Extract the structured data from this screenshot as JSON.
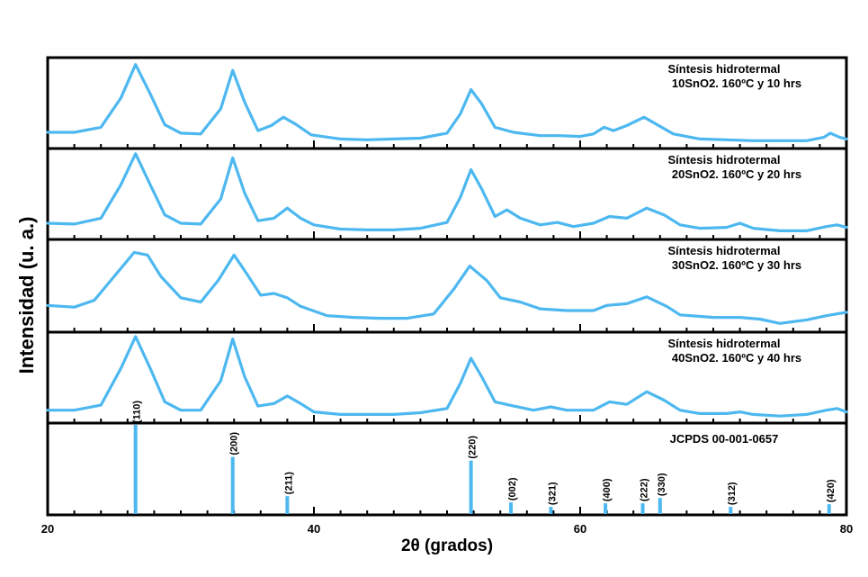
{
  "chart_data": {
    "type": "line",
    "xlabel": "2θ (grados)",
    "ylabel": "Intensidad (u. a.)",
    "xlim": [
      20,
      80
    ],
    "x_ticks": [
      20,
      40,
      60,
      80
    ],
    "line_color": "#4db8f0",
    "panels": [
      {
        "line1": "Síntesis hidrotermal",
        "line2": "10SnO2. 160ºC y 10 hrs",
        "points": [
          [
            20,
            0.14
          ],
          [
            22,
            0.14
          ],
          [
            24,
            0.2
          ],
          [
            25.5,
            0.55
          ],
          [
            26.6,
            0.95
          ],
          [
            27.7,
            0.6
          ],
          [
            28.8,
            0.23
          ],
          [
            30,
            0.13
          ],
          [
            31.5,
            0.12
          ],
          [
            33,
            0.42
          ],
          [
            33.9,
            0.88
          ],
          [
            34.8,
            0.5
          ],
          [
            35.8,
            0.16
          ],
          [
            36.8,
            0.22
          ],
          [
            37.7,
            0.32
          ],
          [
            38.6,
            0.24
          ],
          [
            39.8,
            0.11
          ],
          [
            42,
            0.06
          ],
          [
            44,
            0.05
          ],
          [
            46,
            0.06
          ],
          [
            48,
            0.07
          ],
          [
            50,
            0.13
          ],
          [
            51,
            0.36
          ],
          [
            51.8,
            0.65
          ],
          [
            52.6,
            0.48
          ],
          [
            53.6,
            0.2
          ],
          [
            55,
            0.14
          ],
          [
            57,
            0.1
          ],
          [
            58.5,
            0.1
          ],
          [
            60,
            0.09
          ],
          [
            61,
            0.12
          ],
          [
            61.8,
            0.2
          ],
          [
            62.5,
            0.16
          ],
          [
            63.5,
            0.22
          ],
          [
            64.8,
            0.32
          ],
          [
            65.8,
            0.23
          ],
          [
            67,
            0.12
          ],
          [
            69,
            0.06
          ],
          [
            71,
            0.05
          ],
          [
            73,
            0.04
          ],
          [
            75,
            0.04
          ],
          [
            77,
            0.04
          ],
          [
            78.3,
            0.08
          ],
          [
            78.8,
            0.13
          ],
          [
            79.5,
            0.08
          ],
          [
            80,
            0.06
          ]
        ]
      },
      {
        "line1": "Síntesis hidrotermal",
        "line2": "20SnO2. 160ºC y 20 hrs",
        "points": [
          [
            20,
            0.14
          ],
          [
            22,
            0.13
          ],
          [
            24,
            0.2
          ],
          [
            25.5,
            0.6
          ],
          [
            26.6,
            0.97
          ],
          [
            27.7,
            0.6
          ],
          [
            28.8,
            0.24
          ],
          [
            30,
            0.14
          ],
          [
            31.5,
            0.13
          ],
          [
            33,
            0.43
          ],
          [
            33.9,
            0.92
          ],
          [
            34.8,
            0.5
          ],
          [
            35.8,
            0.17
          ],
          [
            37,
            0.2
          ],
          [
            38,
            0.32
          ],
          [
            39,
            0.2
          ],
          [
            40,
            0.12
          ],
          [
            42,
            0.07
          ],
          [
            44,
            0.06
          ],
          [
            46,
            0.06
          ],
          [
            48,
            0.08
          ],
          [
            50,
            0.15
          ],
          [
            51,
            0.45
          ],
          [
            51.8,
            0.78
          ],
          [
            52.6,
            0.55
          ],
          [
            53.6,
            0.22
          ],
          [
            54.5,
            0.3
          ],
          [
            55.5,
            0.2
          ],
          [
            57,
            0.12
          ],
          [
            58.3,
            0.15
          ],
          [
            59.5,
            0.1
          ],
          [
            61,
            0.14
          ],
          [
            62.2,
            0.22
          ],
          [
            63.5,
            0.2
          ],
          [
            65,
            0.32
          ],
          [
            66.3,
            0.24
          ],
          [
            67.5,
            0.12
          ],
          [
            69,
            0.08
          ],
          [
            71,
            0.09
          ],
          [
            72,
            0.14
          ],
          [
            73,
            0.08
          ],
          [
            75,
            0.05
          ],
          [
            77,
            0.05
          ],
          [
            78.5,
            0.1
          ],
          [
            79.3,
            0.12
          ],
          [
            80,
            0.09
          ]
        ]
      },
      {
        "line1": "Síntesis hidrotermal",
        "line2": "30SnO2. 160ºC y 30 hrs",
        "points": [
          [
            20,
            0.26
          ],
          [
            22,
            0.24
          ],
          [
            23.5,
            0.32
          ],
          [
            25,
            0.6
          ],
          [
            26.5,
            0.88
          ],
          [
            27.5,
            0.85
          ],
          [
            28.5,
            0.6
          ],
          [
            30,
            0.35
          ],
          [
            31.5,
            0.3
          ],
          [
            32.8,
            0.55
          ],
          [
            34,
            0.85
          ],
          [
            35,
            0.62
          ],
          [
            36,
            0.38
          ],
          [
            37,
            0.4
          ],
          [
            38,
            0.35
          ],
          [
            39,
            0.25
          ],
          [
            41,
            0.14
          ],
          [
            43,
            0.12
          ],
          [
            45,
            0.11
          ],
          [
            47,
            0.11
          ],
          [
            49,
            0.16
          ],
          [
            50.5,
            0.45
          ],
          [
            51.7,
            0.72
          ],
          [
            53,
            0.55
          ],
          [
            54,
            0.35
          ],
          [
            55.5,
            0.3
          ],
          [
            57,
            0.22
          ],
          [
            59,
            0.2
          ],
          [
            61,
            0.2
          ],
          [
            62,
            0.26
          ],
          [
            63.5,
            0.28
          ],
          [
            65,
            0.36
          ],
          [
            66.5,
            0.25
          ],
          [
            67.5,
            0.15
          ],
          [
            70,
            0.12
          ],
          [
            72,
            0.12
          ],
          [
            73.5,
            0.1
          ],
          [
            75,
            0.05
          ],
          [
            77,
            0.09
          ],
          [
            78.5,
            0.14
          ],
          [
            80,
            0.18
          ]
        ]
      },
      {
        "line1": "Síntesis hidrotermal",
        "line2": "40SnO2. 160ºC y 40 hrs",
        "points": [
          [
            20,
            0.1
          ],
          [
            22,
            0.1
          ],
          [
            24,
            0.16
          ],
          [
            25.5,
            0.6
          ],
          [
            26.6,
            0.98
          ],
          [
            27.7,
            0.6
          ],
          [
            28.8,
            0.2
          ],
          [
            30,
            0.1
          ],
          [
            31.5,
            0.1
          ],
          [
            33,
            0.45
          ],
          [
            33.9,
            0.95
          ],
          [
            34.8,
            0.5
          ],
          [
            35.8,
            0.15
          ],
          [
            37,
            0.18
          ],
          [
            38,
            0.27
          ],
          [
            39,
            0.18
          ],
          [
            40,
            0.08
          ],
          [
            42,
            0.05
          ],
          [
            44,
            0.05
          ],
          [
            46,
            0.05
          ],
          [
            48,
            0.07
          ],
          [
            50,
            0.12
          ],
          [
            51,
            0.42
          ],
          [
            51.8,
            0.72
          ],
          [
            52.6,
            0.5
          ],
          [
            53.6,
            0.2
          ],
          [
            55,
            0.15
          ],
          [
            56.5,
            0.1
          ],
          [
            57.8,
            0.14
          ],
          [
            59,
            0.1
          ],
          [
            61,
            0.1
          ],
          [
            62.2,
            0.2
          ],
          [
            63.5,
            0.17
          ],
          [
            65,
            0.32
          ],
          [
            66.3,
            0.22
          ],
          [
            67.5,
            0.1
          ],
          [
            69,
            0.06
          ],
          [
            71,
            0.06
          ],
          [
            72,
            0.08
          ],
          [
            73,
            0.05
          ],
          [
            75,
            0.03
          ],
          [
            77,
            0.05
          ],
          [
            78.5,
            0.1
          ],
          [
            79.3,
            0.12
          ],
          [
            80,
            0.08
          ]
        ]
      }
    ],
    "reference": {
      "label": "JCPDS 00-001-0657",
      "peaks": [
        {
          "x": 26.6,
          "intensity": 1.0,
          "hkl": "(110)"
        },
        {
          "x": 33.9,
          "intensity": 0.64,
          "hkl": "(200)"
        },
        {
          "x": 38.0,
          "intensity": 0.2,
          "hkl": "(211)"
        },
        {
          "x": 51.8,
          "intensity": 0.6,
          "hkl": "(220)"
        },
        {
          "x": 54.8,
          "intensity": 0.13,
          "hkl": "(002)"
        },
        {
          "x": 57.8,
          "intensity": 0.08,
          "hkl": "(321)"
        },
        {
          "x": 61.9,
          "intensity": 0.12,
          "hkl": "(400)"
        },
        {
          "x": 64.7,
          "intensity": 0.12,
          "hkl": "(222)"
        },
        {
          "x": 66.0,
          "intensity": 0.18,
          "hkl": "(330)"
        },
        {
          "x": 71.3,
          "intensity": 0.08,
          "hkl": "(312)"
        },
        {
          "x": 78.7,
          "intensity": 0.11,
          "hkl": "(420)"
        }
      ]
    }
  }
}
